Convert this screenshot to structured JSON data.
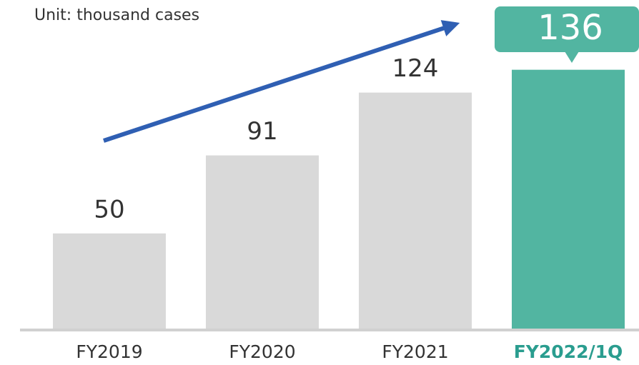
{
  "chart_data": {
    "type": "bar",
    "subtitle": "Unit: thousand cases",
    "categories": [
      "FY2019",
      "FY2020",
      "FY2021",
      "FY2022/1Q"
    ],
    "values": [
      50,
      91,
      124,
      136
    ],
    "colors": [
      "#d9d9d9",
      "#d9d9d9",
      "#d9d9d9",
      "#52b5a1"
    ],
    "label_colors": [
      "#333333",
      "#333333",
      "#333333",
      "#2a9d8f"
    ],
    "ylim": [
      0,
      140
    ]
  }
}
